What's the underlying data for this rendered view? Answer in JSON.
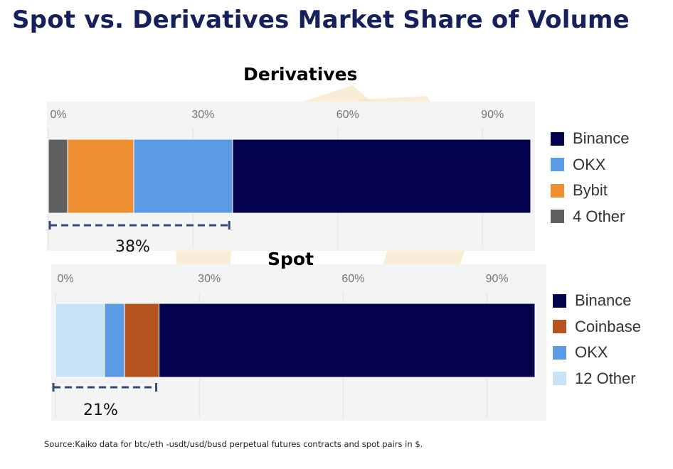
{
  "title": "Spot vs. Derivatives Market Share of Volume",
  "source": "Source:Kaiko data for btc/eth -usdt/usd/busd perpetual futures contracts and spot pairs in  $.",
  "colors": {
    "binance": "#03034d",
    "okx": "#5b9be3",
    "bybit": "#ef8e31",
    "other_derivatives": "#5f5f5f",
    "coinbase": "#b6541f",
    "other_spot": "#c7e3f7",
    "bracket": "#34497c",
    "panel": "#f4f4f4"
  },
  "chart_data": [
    {
      "type": "bar",
      "orientation": "horizontal-stacked",
      "title": "Derivatives",
      "ticks": [
        "0%",
        "30%",
        "60%",
        "90%"
      ],
      "xlim": [
        0,
        100
      ],
      "grid": true,
      "legend_position": "right",
      "legend": [
        "Binance",
        "OKX",
        "Bybit",
        "4 Other"
      ],
      "series": [
        {
          "name": "4 Other",
          "value": 4,
          "color_key": "other_derivatives"
        },
        {
          "name": "Bybit",
          "value": 13.7,
          "color_key": "bybit"
        },
        {
          "name": "OKX",
          "value": 20.5,
          "color_key": "okx"
        },
        {
          "name": "Binance",
          "value": 61.8,
          "color_key": "binance"
        }
      ],
      "bracket": {
        "from": 0,
        "to": 37.5,
        "label": "38%"
      }
    },
    {
      "type": "bar",
      "orientation": "horizontal-stacked",
      "title": "Spot",
      "ticks": [
        "0%",
        "30%",
        "60%",
        "90%"
      ],
      "xlim": [
        0,
        100
      ],
      "grid": true,
      "legend_position": "right",
      "legend": [
        "Binance",
        "Coinbase",
        "OKX",
        "12 Other"
      ],
      "series": [
        {
          "name": "12 Other",
          "value": 10.2,
          "color_key": "other_spot"
        },
        {
          "name": "OKX",
          "value": 4.2,
          "color_key": "okx"
        },
        {
          "name": "Coinbase",
          "value": 7.2,
          "color_key": "coinbase"
        },
        {
          "name": "Binance",
          "value": 78.4,
          "color_key": "binance"
        }
      ],
      "bracket": {
        "from": 0,
        "to": 21,
        "label": "21%"
      }
    }
  ]
}
